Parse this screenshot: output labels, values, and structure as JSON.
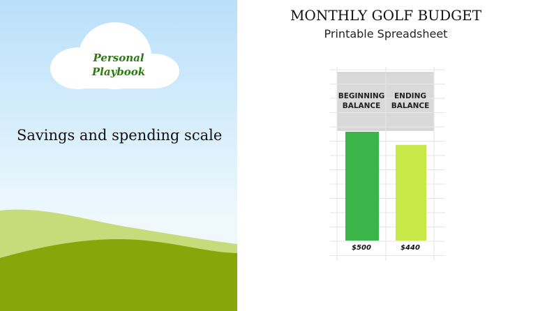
{
  "badge": "Personal Playbook",
  "caption": "Savings and spending scale",
  "chart_data": {
    "type": "bar",
    "title": "MONTHLY GOLF BUDGET",
    "subtitle": "Printable Spreadsheet",
    "categories": [
      "BEGINNING BALANCE",
      "ENDING BALANCE"
    ],
    "values": [
      500,
      440
    ],
    "value_labels": [
      "$500",
      "$440"
    ],
    "colors": [
      "#3bb54a",
      "#c8e84a"
    ]
  }
}
